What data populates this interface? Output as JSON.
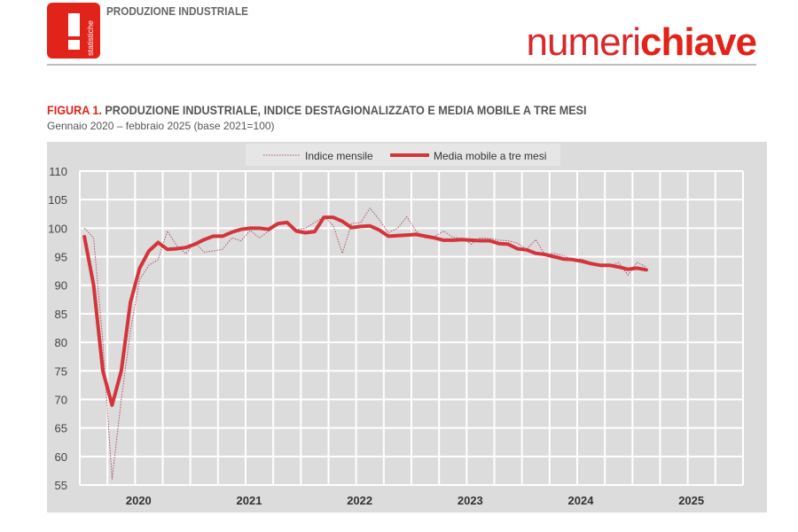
{
  "header": {
    "logo_text": "statistiche",
    "section": "PRODUZIONE INDUSTRIALE",
    "brand_thin": "numeri",
    "brand_bold": "chiave"
  },
  "figure": {
    "label": "FIGURA 1.",
    "title": "PRODUZIONE INDUSTRIALE, INDICE DESTAGIONALIZZATO E MEDIA MOBILE A TRE MESI",
    "subtitle": "Gennaio 2020 – febbraio 2025 (base 2021=100)"
  },
  "colors": {
    "accent": "#e2231a",
    "line": "#d4343c",
    "dotted": "#b05060",
    "bg": "#dcdcdc",
    "grid": "#ffffff"
  },
  "chart_data": {
    "type": "line",
    "title": "PRODUZIONE INDUSTRIALE, INDICE DESTAGIONALIZZATO E MEDIA MOBILE A TRE MESI",
    "xlabel": "",
    "ylabel": "",
    "ylim": [
      55,
      110
    ],
    "yticks": [
      "110",
      "105",
      "100",
      "95",
      "90",
      "85",
      "80",
      "75",
      "70",
      "65",
      "60",
      "55"
    ],
    "year_labels": [
      "2020",
      "2021",
      "2022",
      "2023",
      "2024",
      "2025"
    ],
    "grid": true,
    "legend_position": "top-center",
    "x_start": "2020-01",
    "series": [
      {
        "name": "Indice mensile",
        "style": "dotted",
        "values": [
          100,
          98.3,
          80,
          56,
          70,
          82,
          91,
          93.5,
          94.5,
          99.5,
          97,
          95.5,
          97.5,
          95.8,
          96,
          96.3,
          98.3,
          97.8,
          99.6,
          98.3,
          99.5,
          100.5,
          101,
          99.8,
          100,
          101,
          102,
          100.5,
          95.6,
          100.8,
          101,
          103.5,
          101.5,
          99.2,
          100,
          102,
          99.5,
          98.3,
          98.5,
          99.5,
          98.4,
          98.2,
          97.2,
          98.3,
          98.2,
          97.9,
          97.8,
          97.4,
          96.3,
          98,
          95.3,
          95.6,
          95.2,
          94.5,
          94.6,
          94,
          93.6,
          93.4,
          94,
          91.8,
          94,
          93.2
        ]
      },
      {
        "name": "Media mobile a tre mesi",
        "style": "solid",
        "values": [
          98.5,
          90,
          75,
          69,
          75,
          87,
          93,
          96,
          97.5,
          96.3,
          96.4,
          96.6,
          97.2,
          98,
          98.6,
          98.6,
          99.3,
          99.8,
          100,
          100,
          99.8,
          100.8,
          101,
          99.5,
          99.2,
          99.4,
          101.9,
          101.9,
          101.2,
          100.1,
          100.3,
          100.4,
          99.7,
          98.6,
          98.7,
          98.8,
          98.9,
          98.6,
          98.3,
          97.9,
          97.9,
          98,
          97.9,
          97.8,
          97.8,
          97.3,
          97.2,
          96.4,
          96.2,
          95.6,
          95.4,
          95,
          94.6,
          94.5,
          94.2,
          93.8,
          93.5,
          93.5,
          93.2,
          92.8,
          93,
          92.7
        ]
      }
    ]
  }
}
